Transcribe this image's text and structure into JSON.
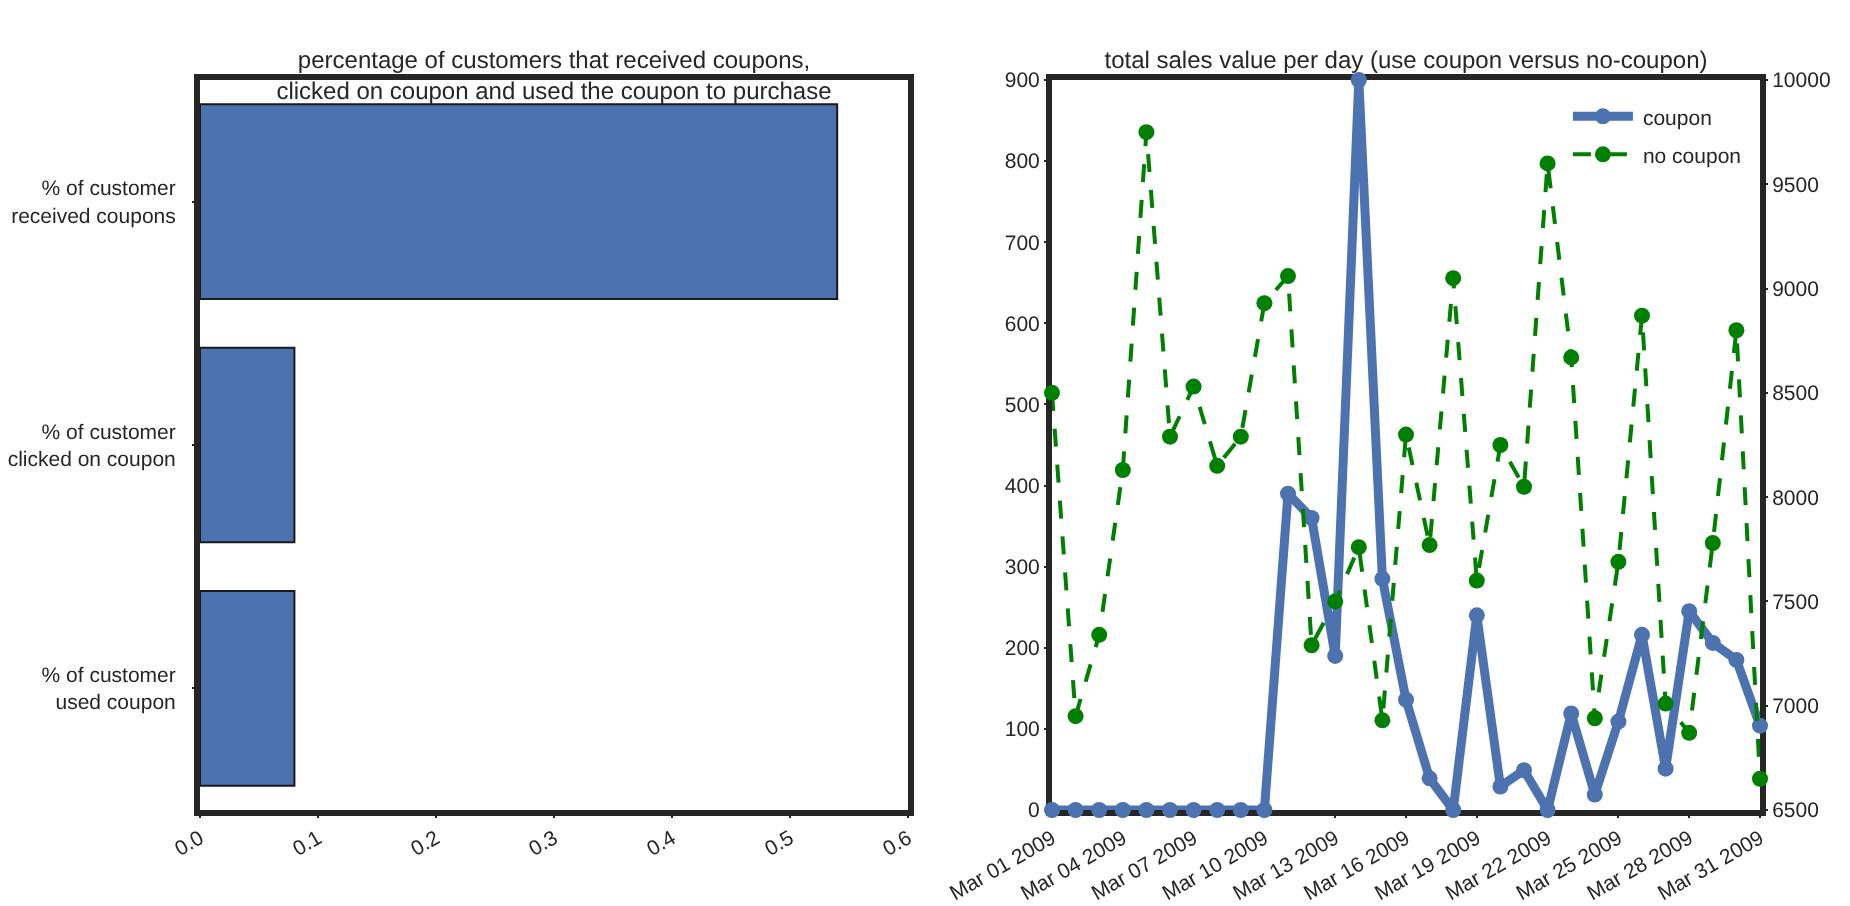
{
  "chart_data": [
    {
      "type": "bar",
      "orientation": "horizontal",
      "title": "percentage of customers that received coupons,\nclicked on coupon and used the coupon to purchase",
      "categories": [
        "% of customer\nreceived coupons",
        "% of customer\nclicked on coupon",
        "% of customer\nused coupon"
      ],
      "values": [
        0.54,
        0.08,
        0.08
      ],
      "color": "#4c72b0",
      "xlim": [
        0,
        0.6
      ],
      "xticks": [
        {
          "value": 0,
          "label": "0.0"
        },
        0.1,
        0.2,
        0.3,
        0.4,
        0.5,
        0.6
      ],
      "grid": false,
      "legend": false
    },
    {
      "type": "line",
      "title": "total sales value per day (use coupon versus no-coupon)",
      "x": [
        "2009-03-01",
        "2009-03-02",
        "2009-03-03",
        "2009-03-04",
        "2009-03-05",
        "2009-03-06",
        "2009-03-07",
        "2009-03-08",
        "2009-03-09",
        "2009-03-10",
        "2009-03-11",
        "2009-03-12",
        "2009-03-13",
        "2009-03-14",
        "2009-03-15",
        "2009-03-16",
        "2009-03-17",
        "2009-03-18",
        "2009-03-19",
        "2009-03-20",
        "2009-03-21",
        "2009-03-22",
        "2009-03-23",
        "2009-03-24",
        "2009-03-25",
        "2009-03-26",
        "2009-03-27",
        "2009-03-28",
        "2009-03-29",
        "2009-03-30",
        "2009-03-31"
      ],
      "series": [
        {
          "name": "coupon",
          "color": "#4c72b0",
          "line_style": "solid",
          "values": [
            0,
            0,
            0,
            0,
            0,
            0,
            0,
            0,
            0,
            0,
            390,
            360,
            190,
            900,
            285,
            136,
            39,
            0,
            240,
            29,
            49,
            0,
            119,
            19,
            109,
            216,
            51,
            245,
            206,
            185,
            104
          ]
        },
        {
          "name": "no coupon",
          "color": "#008000",
          "line_style": "dashed",
          "axis": "y2",
          "values": [
            8500,
            6950,
            7340,
            8130,
            9750,
            8290,
            8530,
            8150,
            8290,
            8930,
            9060,
            7290,
            7500,
            7760,
            6930,
            8300,
            7770,
            9050,
            7600,
            8250,
            8050,
            9600,
            8670,
            6940,
            7690,
            8870,
            7010,
            6870,
            7780,
            8800,
            6650
          ]
        }
      ],
      "marker": "circle",
      "xlim": [
        "2009-03-01",
        "2009-03-31"
      ],
      "xticks": [
        {
          "value": "2009-03-01",
          "label": "Mar 01 2009"
        },
        {
          "value": "2009-03-04",
          "label": "Mar 04 2009"
        },
        {
          "value": "2009-03-07",
          "label": "Mar 07 2009"
        },
        {
          "value": "2009-03-10",
          "label": "Mar 10 2009"
        },
        {
          "value": "2009-03-13",
          "label": "Mar 13 2009"
        },
        {
          "value": "2009-03-16",
          "label": "Mar 16 2009"
        },
        {
          "value": "2009-03-19",
          "label": "Mar 19 2009"
        },
        {
          "value": "2009-03-22",
          "label": "Mar 22 2009"
        },
        {
          "value": "2009-03-25",
          "label": "Mar 25 2009"
        },
        {
          "value": "2009-03-28",
          "label": "Mar 28 2009"
        },
        {
          "value": "2009-03-31",
          "label": "Mar 31 2009"
        }
      ],
      "ylim": [
        0,
        900
      ],
      "yticks": [
        0,
        100,
        200,
        300,
        400,
        500,
        600,
        700,
        800,
        900
      ],
      "y2lim": [
        6500,
        10000
      ],
      "y2ticks": [
        6500,
        7000,
        7500,
        8000,
        8500,
        9000,
        9500,
        10000
      ],
      "grid": false,
      "legend": "top right"
    }
  ]
}
